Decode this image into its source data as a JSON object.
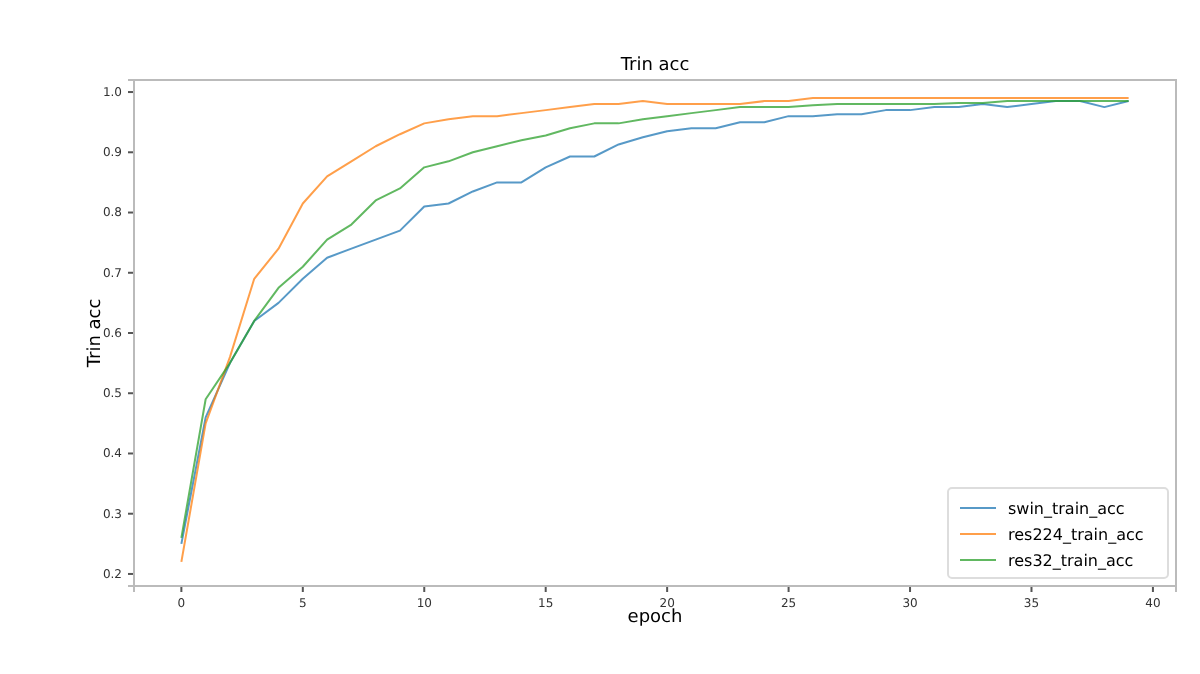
{
  "chart_data": {
    "type": "line",
    "title": "Trin acc",
    "xlabel": "epoch",
    "ylabel": "Trin acc",
    "x": [
      0,
      1,
      2,
      3,
      4,
      5,
      6,
      7,
      8,
      9,
      10,
      11,
      12,
      13,
      14,
      15,
      16,
      17,
      18,
      19,
      20,
      21,
      22,
      23,
      24,
      25,
      26,
      27,
      28,
      29,
      30,
      31,
      32,
      33,
      34,
      35,
      36,
      37,
      38,
      39
    ],
    "xlim": [
      -1.95,
      40.95
    ],
    "xticks": [
      0,
      5,
      10,
      15,
      20,
      25,
      30,
      35,
      40
    ],
    "ylim": [
      0.18,
      1.02
    ],
    "yticks": [
      {
        "value": 0.2,
        "label": "0.2"
      },
      {
        "value": 0.3,
        "label": "0.3"
      },
      {
        "value": 0.4,
        "label": "0.4"
      },
      {
        "value": 0.5,
        "label": "0.5"
      },
      {
        "value": 0.6,
        "label": "0.6"
      },
      {
        "value": 0.7,
        "label": "0.7"
      },
      {
        "value": 0.8,
        "label": "0.8"
      },
      {
        "value": 0.9,
        "label": "0.9"
      },
      {
        "value": 1.0,
        "label": "1.0"
      }
    ],
    "legend": "bottom right",
    "grid": false,
    "series": [
      {
        "name": "swin_train_acc",
        "color": "#1f77b4",
        "values": [
          0.25,
          0.46,
          0.55,
          0.62,
          0.65,
          0.69,
          0.725,
          0.74,
          0.755,
          0.77,
          0.81,
          0.815,
          0.835,
          0.85,
          0.85,
          0.875,
          0.893,
          0.893,
          0.913,
          0.925,
          0.935,
          0.94,
          0.94,
          0.95,
          0.95,
          0.96,
          0.96,
          0.963,
          0.963,
          0.97,
          0.97,
          0.975,
          0.975,
          0.98,
          0.975,
          0.98,
          0.985,
          0.985,
          0.975,
          0.985
        ]
      },
      {
        "name": "res224_train_acc",
        "color": "#ff7f0e",
        "values": [
          0.22,
          0.45,
          0.56,
          0.69,
          0.74,
          0.815,
          0.86,
          0.885,
          0.91,
          0.93,
          0.948,
          0.955,
          0.96,
          0.96,
          0.965,
          0.97,
          0.975,
          0.98,
          0.98,
          0.985,
          0.98,
          0.98,
          0.98,
          0.98,
          0.985,
          0.985,
          0.99,
          0.99,
          0.99,
          0.99,
          0.99,
          0.99,
          0.99,
          0.99,
          0.99,
          0.99,
          0.99,
          0.99,
          0.99,
          0.99
        ]
      },
      {
        "name": "res32_train_acc",
        "color": "#2ca02c",
        "values": [
          0.26,
          0.49,
          0.55,
          0.62,
          0.675,
          0.71,
          0.755,
          0.78,
          0.82,
          0.84,
          0.875,
          0.885,
          0.9,
          0.91,
          0.92,
          0.928,
          0.94,
          0.948,
          0.948,
          0.955,
          0.96,
          0.965,
          0.97,
          0.975,
          0.975,
          0.975,
          0.978,
          0.98,
          0.98,
          0.98,
          0.98,
          0.98,
          0.982,
          0.982,
          0.985,
          0.985,
          0.985,
          0.985,
          0.985,
          0.985
        ]
      }
    ]
  }
}
